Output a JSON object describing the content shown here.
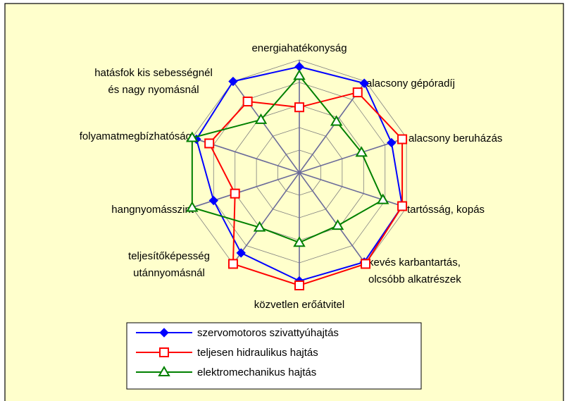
{
  "chart_data": {
    "type": "radar",
    "categories": [
      "energiahatékonyság",
      "alacsony gépóradíj",
      "alacsony beruházás",
      "tartósság, kopás",
      "kevés karbantartás,\nolcsóbb alkatrészek",
      "közvetlen erőátvitel",
      "teljesítőképesség\nutánnyomásnál",
      "hangnyomásszint",
      "folyamatmegbízhatóság",
      "hatásfok kis sebességnél\nés nagy nyomásnál"
    ],
    "series": [
      {
        "name": "szervomotoros szivattyúhajtás",
        "color": "#0000ff",
        "marker": "diamond",
        "values": [
          4.7,
          4.9,
          4.3,
          4.8,
          4.9,
          4.8,
          4.4,
          4.0,
          4.8,
          5.0
        ]
      },
      {
        "name": "teljesen hidraulikus hajtás",
        "color": "#ff0000",
        "marker": "square",
        "values": [
          2.9,
          4.4,
          4.8,
          4.8,
          5.0,
          5.0,
          5.0,
          3.0,
          4.2,
          3.9
        ]
      },
      {
        "name": "elektromechanikus hajtás",
        "color": "#008000",
        "marker": "triangle",
        "values": [
          4.3,
          2.8,
          2.9,
          3.9,
          2.9,
          3.1,
          3.0,
          5.0,
          5.0,
          2.9
        ]
      }
    ],
    "rlim": [
      0,
      5
    ],
    "rticks": [
      1,
      2,
      3,
      4,
      5
    ],
    "grid": true
  }
}
